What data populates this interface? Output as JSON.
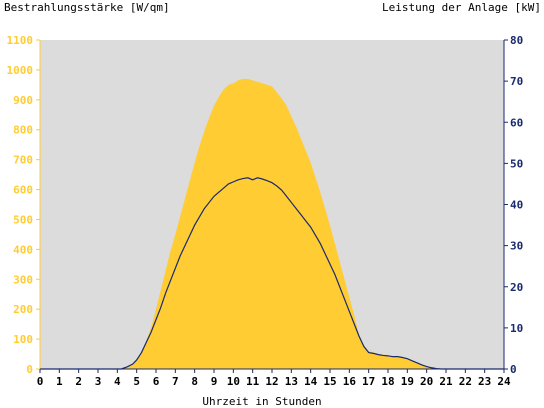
{
  "chart_data": {
    "type": "area",
    "title_left": "Bestrahlungsstärke [W/qm]",
    "title_right": "Leistung der Anlage [kW]",
    "xlabel": "Uhrzeit in Stunden",
    "x_ticks": [
      "0",
      "1",
      "2",
      "3",
      "4",
      "5",
      "6",
      "7",
      "8",
      "9",
      "10",
      "11",
      "12",
      "13",
      "14",
      "15",
      "16",
      "17",
      "18",
      "19",
      "20",
      "21",
      "22",
      "23",
      "24"
    ],
    "y_left_ticks": [
      "0",
      "100",
      "200",
      "300",
      "400",
      "500",
      "600",
      "700",
      "800",
      "900",
      "1000",
      "1100"
    ],
    "y_right_ticks": [
      "0",
      "10",
      "20",
      "30",
      "40",
      "50",
      "60",
      "70",
      "80"
    ],
    "xlim": [
      0,
      24
    ],
    "ylim_left": [
      0,
      1100
    ],
    "ylim_right": [
      0,
      80
    ],
    "grid": false,
    "colors": {
      "irradiance": "#ffcc33",
      "power": "#1a2a6c",
      "plot_bg": "#dcdcdc",
      "left_axis": "#ffcc33",
      "right_axis": "#1a2a6c"
    },
    "series": [
      {
        "axis": "left",
        "x": [
          0,
          4.2,
          4.5,
          4.8,
          5.0,
          5.25,
          5.5,
          5.75,
          6.0,
          6.25,
          6.5,
          6.75,
          7.0,
          7.25,
          7.5,
          7.75,
          8.0,
          8.25,
          8.5,
          8.75,
          9.0,
          9.25,
          9.5,
          9.75,
          10.0,
          10.25,
          10.5,
          10.75,
          11.0,
          11.25,
          11.5,
          11.75,
          12.0,
          12.25,
          12.5,
          12.75,
          13.0,
          13.25,
          13.5,
          13.75,
          14.0,
          14.25,
          14.5,
          14.75,
          15.0,
          15.25,
          15.5,
          15.75,
          16.0,
          16.25,
          16.5,
          16.75,
          17.0,
          17.25,
          17.5,
          17.75,
          18.0,
          18.25,
          18.5,
          18.75,
          19.0,
          19.25,
          19.5,
          19.75,
          20.0,
          20.25,
          20.5,
          20.75,
          21.0,
          24
        ],
        "values": [
          0,
          0,
          5,
          15,
          30,
          55,
          95,
          140,
          200,
          265,
          330,
          395,
          450,
          510,
          570,
          630,
          690,
          745,
          795,
          840,
          880,
          910,
          935,
          950,
          955,
          965,
          970,
          970,
          965,
          960,
          955,
          950,
          945,
          925,
          905,
          880,
          845,
          810,
          770,
          730,
          690,
          640,
          590,
          535,
          480,
          420,
          360,
          300,
          240,
          180,
          115,
          75,
          60,
          55,
          50,
          48,
          45,
          42,
          40,
          38,
          33,
          28,
          22,
          16,
          10,
          6,
          3,
          1,
          0,
          0
        ]
      },
      {
        "axis": "right",
        "x": [
          0,
          4.2,
          4.5,
          4.8,
          5.0,
          5.25,
          5.5,
          5.75,
          6.0,
          6.25,
          6.5,
          6.75,
          7.0,
          7.25,
          7.5,
          7.75,
          8.0,
          8.25,
          8.5,
          8.75,
          9.0,
          9.25,
          9.5,
          9.75,
          10.0,
          10.25,
          10.5,
          10.75,
          11.0,
          11.25,
          11.5,
          11.75,
          12.0,
          12.25,
          12.5,
          12.75,
          13.0,
          13.25,
          13.5,
          13.75,
          14.0,
          14.25,
          14.5,
          14.75,
          15.0,
          15.25,
          15.5,
          15.75,
          16.0,
          16.25,
          16.5,
          16.75,
          17.0,
          17.25,
          17.5,
          17.75,
          18.0,
          18.25,
          18.5,
          18.75,
          19.0,
          19.25,
          19.5,
          19.75,
          20.0,
          20.25,
          20.5,
          20.75,
          21.0,
          24
        ],
        "values": [
          0,
          0,
          0.5,
          1.2,
          2.2,
          4,
          6.5,
          9,
          12,
          15,
          18.5,
          21.5,
          24.5,
          27.5,
          30,
          32.5,
          35,
          37,
          39,
          40.5,
          42,
          43,
          44,
          45,
          45.5,
          46,
          46.3,
          46.5,
          46,
          46.5,
          46.2,
          45.8,
          45.3,
          44.5,
          43.5,
          42,
          40.5,
          39,
          37.5,
          36,
          34.5,
          32.5,
          30.5,
          28,
          25.5,
          23,
          20,
          17,
          14,
          11,
          8,
          5.5,
          4,
          3.8,
          3.5,
          3.3,
          3.2,
          3,
          3,
          2.8,
          2.5,
          2,
          1.5,
          1,
          0.6,
          0.3,
          0.1,
          0,
          0,
          0
        ]
      }
    ]
  }
}
